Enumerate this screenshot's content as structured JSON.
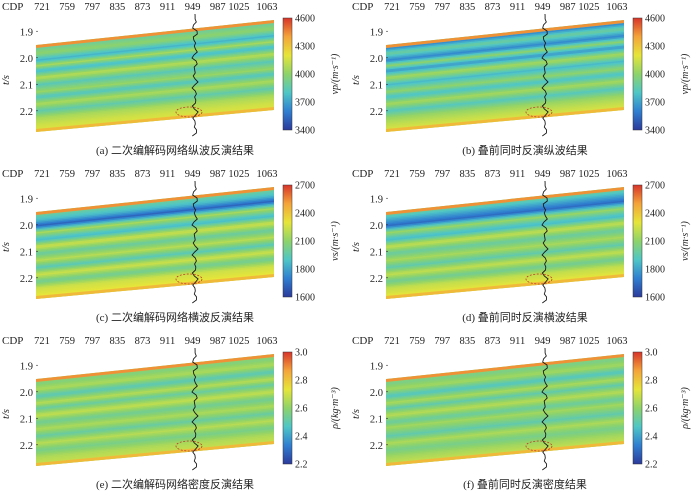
{
  "chart_data": [
    {
      "type": "heatmap",
      "caption": "(a) 二次编解码网络纵波反演结果",
      "xlabel": "CDP",
      "xticks": [
        "721",
        "759",
        "797",
        "835",
        "873",
        "911",
        "949",
        "987",
        "1025",
        "1063"
      ],
      "ylabel": "t/s",
      "yticks": [
        "1.9",
        "2.0",
        "2.1",
        "2.2"
      ],
      "ylim": [
        1.85,
        2.28
      ],
      "colorbar": {
        "label": "vp/(m·s⁻¹)",
        "ticks": [
          "3400",
          "3700",
          "4000",
          "4300",
          "4600"
        ],
        "range": [
          3400,
          4600
        ]
      },
      "colormap": [
        "#2b3a9b",
        "#2f7fd0",
        "#4fc6c6",
        "#8ed36a",
        "#e6e53a",
        "#f4a43a",
        "#d7342a"
      ],
      "style": "p"
    },
    {
      "type": "heatmap",
      "caption": "(b) 叠前同时反演纵波结果",
      "xlabel": "CDP",
      "xticks": [
        "721",
        "759",
        "797",
        "835",
        "873",
        "911",
        "949",
        "987",
        "1025",
        "1063"
      ],
      "ylabel": "t/s",
      "yticks": [
        "1.9",
        "2.0",
        "2.1",
        "2.2"
      ],
      "ylim": [
        1.85,
        2.28
      ],
      "colorbar": {
        "label": "vp/(m·s⁻¹)",
        "ticks": [
          "3400",
          "3700",
          "4000",
          "4300",
          "4600"
        ],
        "range": [
          3400,
          4600
        ]
      },
      "colormap": [
        "#2b3a9b",
        "#2f7fd0",
        "#4fc6c6",
        "#8ed36a",
        "#e6e53a",
        "#f4a43a",
        "#d7342a"
      ],
      "style": "p2"
    },
    {
      "type": "heatmap",
      "caption": "(c) 二次编解码网络横波反演结果",
      "xlabel": "CDP",
      "xticks": [
        "721",
        "759",
        "797",
        "835",
        "873",
        "911",
        "949",
        "987",
        "1025",
        "1063"
      ],
      "ylabel": "t/s",
      "yticks": [
        "1.9",
        "2.0",
        "2.1",
        "2.2"
      ],
      "ylim": [
        1.85,
        2.28
      ],
      "colorbar": {
        "label": "vs/(m·s⁻¹)",
        "ticks": [
          "1600",
          "1800",
          "2100",
          "2400",
          "2700"
        ],
        "range": [
          1600,
          2700
        ]
      },
      "colormap": [
        "#2b3a9b",
        "#2f7fd0",
        "#4fc6c6",
        "#8ed36a",
        "#e6e53a",
        "#f4a43a",
        "#d7342a"
      ],
      "style": "s"
    },
    {
      "type": "heatmap",
      "caption": "(d) 叠前同时反演横波结果",
      "xlabel": "CDP",
      "xticks": [
        "721",
        "759",
        "797",
        "835",
        "873",
        "911",
        "949",
        "987",
        "1025",
        "1063"
      ],
      "ylabel": "t/s",
      "yticks": [
        "1.9",
        "2.0",
        "2.1",
        "2.2"
      ],
      "ylim": [
        1.85,
        2.28
      ],
      "colorbar": {
        "label": "vs/(m·s⁻¹)",
        "ticks": [
          "1600",
          "1800",
          "2100",
          "2400",
          "2700"
        ],
        "range": [
          1600,
          2700
        ]
      },
      "colormap": [
        "#2b3a9b",
        "#2f7fd0",
        "#4fc6c6",
        "#8ed36a",
        "#e6e53a",
        "#f4a43a",
        "#d7342a"
      ],
      "style": "s2"
    },
    {
      "type": "heatmap",
      "caption": "(e) 二次编解码网络密度反演结果",
      "xlabel": "CDP",
      "xticks": [
        "721",
        "759",
        "797",
        "835",
        "873",
        "911",
        "949",
        "987",
        "1025",
        "1063"
      ],
      "ylabel": "t/s",
      "yticks": [
        "1.9",
        "2.0",
        "2.1",
        "2.2"
      ],
      "ylim": [
        1.85,
        2.28
      ],
      "colorbar": {
        "label": "ρ/(kg·m⁻³)",
        "ticks": [
          "2.2",
          "2.4",
          "2.6",
          "2.8",
          "3.0"
        ],
        "range": [
          2.2,
          3.0
        ]
      },
      "colormap": [
        "#2b3a9b",
        "#2f7fd0",
        "#4fc6c6",
        "#8ed36a",
        "#e6e53a",
        "#f4a43a",
        "#d7342a"
      ],
      "style": "d"
    },
    {
      "type": "heatmap",
      "caption": "(f) 叠前同时反演密度结果",
      "xlabel": "CDP",
      "xticks": [
        "721",
        "759",
        "797",
        "835",
        "873",
        "911",
        "949",
        "987",
        "1025",
        "1063"
      ],
      "ylabel": "t/s",
      "yticks": [
        "1.9",
        "2.0",
        "2.1",
        "2.2"
      ],
      "ylim": [
        1.85,
        2.28
      ],
      "colorbar": {
        "label": "ρ/(kg·m⁻³)",
        "ticks": [
          "2.2",
          "2.4",
          "2.6",
          "2.8",
          "3.0"
        ],
        "range": [
          2.2,
          3.0
        ]
      },
      "colormap": [
        "#2b3a9b",
        "#2f7fd0",
        "#4fc6c6",
        "#8ed36a",
        "#e6e53a",
        "#f4a43a",
        "#d7342a"
      ],
      "style": "d2"
    }
  ]
}
